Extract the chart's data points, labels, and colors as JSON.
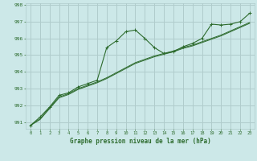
{
  "xlabel": "Graphe pression niveau de la mer (hPa)",
  "background_color": "#cce8e8",
  "grid_color": "#b0cccc",
  "line_color": "#2d6b2d",
  "ylim": [
    990.6,
    998.1
  ],
  "xlim": [
    -0.5,
    23.5
  ],
  "yticks": [
    991,
    992,
    993,
    994,
    995,
    996,
    997,
    998
  ],
  "xticks": [
    0,
    1,
    2,
    3,
    4,
    5,
    6,
    7,
    8,
    9,
    10,
    11,
    12,
    13,
    14,
    15,
    16,
    17,
    18,
    19,
    20,
    21,
    22,
    23
  ],
  "xtick_labels": [
    "0",
    "1",
    "2",
    "3",
    "4",
    "5",
    "6",
    "7",
    "8",
    "9",
    "10",
    "11",
    "12",
    "13",
    "14",
    "15",
    "16",
    "17",
    "18",
    "19",
    "20",
    "21",
    "22",
    "23"
  ],
  "series1": [
    990.8,
    991.3,
    991.9,
    992.6,
    992.75,
    993.1,
    993.3,
    993.5,
    995.45,
    995.85,
    996.4,
    996.5,
    996.0,
    995.45,
    995.1,
    995.2,
    995.5,
    995.7,
    996.0,
    996.85,
    996.8,
    996.85,
    997.0,
    997.5
  ],
  "series2": [
    990.8,
    991.2,
    991.85,
    992.5,
    992.7,
    993.0,
    993.2,
    993.4,
    993.65,
    993.95,
    994.25,
    994.55,
    994.75,
    994.95,
    995.1,
    995.25,
    995.45,
    995.6,
    995.8,
    996.0,
    996.2,
    996.45,
    996.7,
    996.95
  ],
  "series3": [
    990.8,
    991.15,
    991.8,
    992.45,
    992.65,
    992.95,
    993.15,
    993.35,
    993.6,
    993.9,
    994.2,
    994.5,
    994.7,
    994.9,
    995.05,
    995.2,
    995.4,
    995.55,
    995.75,
    995.95,
    996.15,
    996.4,
    996.65,
    996.9
  ]
}
